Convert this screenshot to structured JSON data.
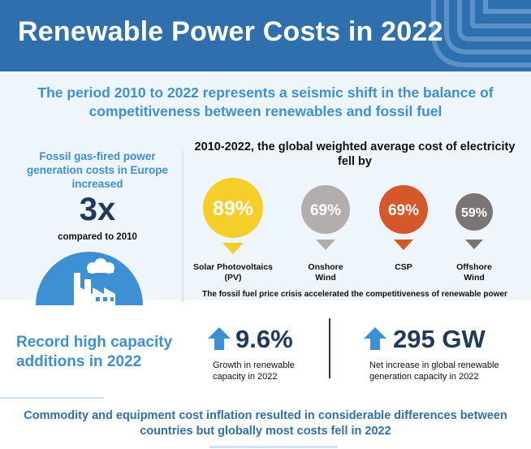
{
  "header": {
    "title": "Renewable Power Costs in 2022"
  },
  "intro": {
    "text": "The period 2010 to 2022 represents a seismic shift in the balance of competitiveness between renewables and fossil fuel"
  },
  "fossil": {
    "text": "Fossil gas-fired power generation costs in Europe increased",
    "big_value": "3x",
    "compared": "compared to 2010"
  },
  "cost_fall": {
    "title": "2010-2022, the global weighted average cost of electricity fell by",
    "items": [
      {
        "value": "89%",
        "label": "Solar Photovoltaics (PV)",
        "color": "#f5ce2a",
        "arrow_color": "#f5ce2a"
      },
      {
        "value": "69%",
        "label": "Onshore Wind",
        "color": "#b3adad",
        "arrow_color": "#b3adad"
      },
      {
        "value": "69%",
        "label": "CSP",
        "color": "#d5582a",
        "arrow_color": "#d5582a"
      },
      {
        "value": "59%",
        "label": "Offshore Wind",
        "color": "#7a7474",
        "arrow_color": "#7a7474"
      }
    ],
    "note": "The fossil fuel price crisis accelerated the competitiveness of renewable power"
  },
  "capacity": {
    "title": "Record high capacity additions in 2022",
    "stats": [
      {
        "value": "9.6%",
        "desc": "Growth in renewable capacity in 2022"
      },
      {
        "value": "295 GW",
        "desc": "Net increase in global renewable generation capacity in 2022"
      }
    ]
  },
  "footer": {
    "text": "Commodity and equipment cost inflation resulted in considerable differences between countries but globally most costs fell in 2022"
  },
  "colors": {
    "header_bg": "#2f6fae",
    "accent_blue": "#3d90d4",
    "navy": "#1f3a5a",
    "band_bg": "#eef5fb"
  },
  "icons": {
    "header": "stripe-arc-decoration",
    "factory": "factory-icon",
    "arrow": "arrow-up-icon"
  }
}
